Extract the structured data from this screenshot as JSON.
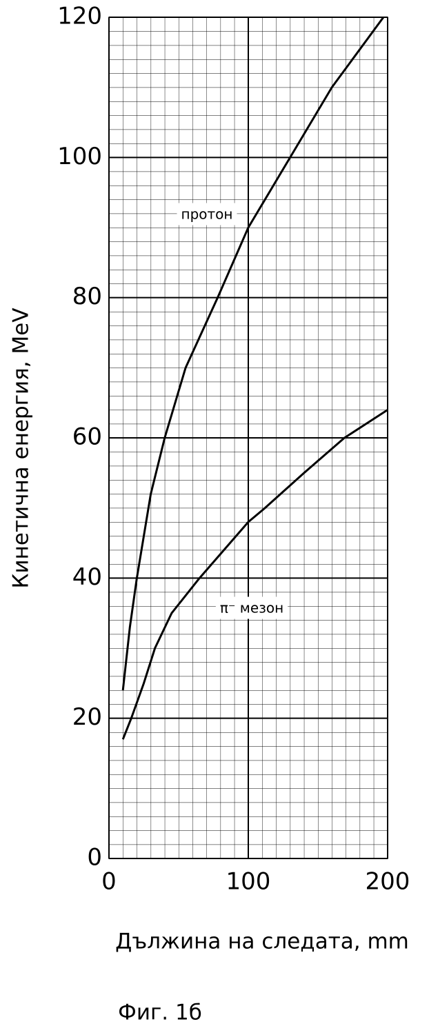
{
  "chart_data": {
    "type": "line",
    "x_label": "Дължина на следата, mm",
    "y_label": "Кинетична енергия, MeV",
    "caption": "Фиг. 1б",
    "xlim": [
      0,
      200
    ],
    "ylim": [
      0,
      120
    ],
    "xticks": [
      0,
      100,
      200
    ],
    "yticks": [
      0,
      20,
      40,
      60,
      80,
      100,
      120
    ],
    "grid": true,
    "series": [
      {
        "name": "протон",
        "color": "#000000",
        "x": [
          10,
          15,
          20,
          30,
          40,
          55,
          78,
          100,
          130,
          160,
          197
        ],
        "values": [
          24,
          33,
          40,
          52,
          60,
          70,
          80,
          90,
          100,
          110,
          120
        ]
      },
      {
        "name": "π⁻ мезон",
        "color": "#000000",
        "x": [
          10,
          16,
          25,
          33,
          45,
          65,
          100,
          112,
          140,
          169,
          200
        ],
        "values": [
          17,
          20,
          25,
          30,
          35,
          40,
          48,
          50,
          55,
          60,
          64
        ]
      }
    ]
  }
}
